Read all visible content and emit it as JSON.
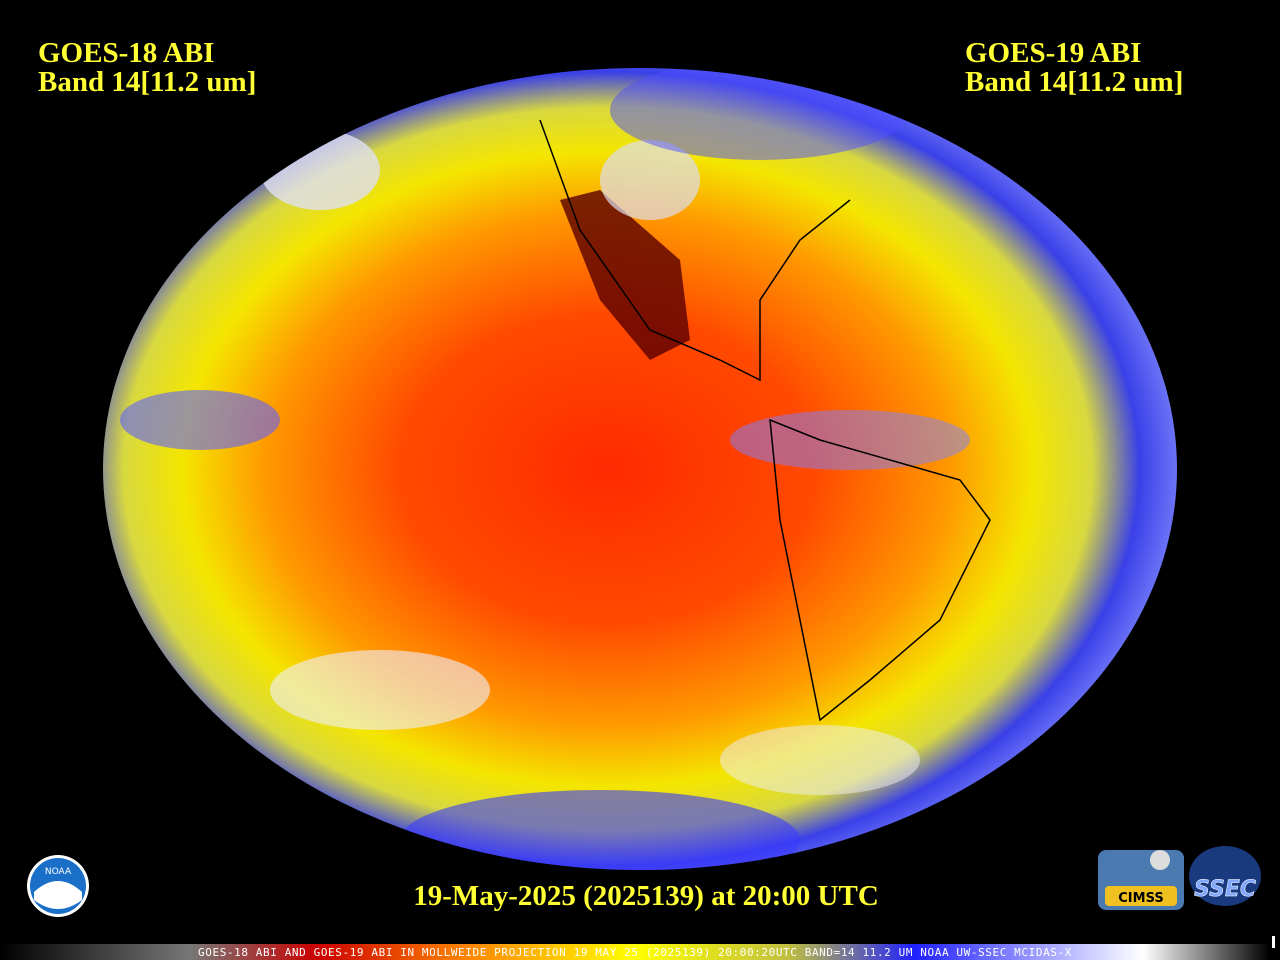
{
  "header": {
    "left": {
      "line1": "GOES-18 ABI",
      "line2": "Band 14[11.2 um]"
    },
    "right": {
      "line1": "GOES-19 ABI",
      "line2": "Band 14[11.2 um]"
    }
  },
  "timestamp": "19-May-2025 (2025139) at 20:00 UTC",
  "footer": "GOES-18 ABI AND GOES-19 ABI IN MOLLWEIDE PROJECTION 19 MAY 25 (2025139) 20:00:20UTC BAND=14 11.2 UM NOAA UW-SSEC MCIDAS-X",
  "logos": {
    "noaa": "NOAA",
    "cimss": "CIMSS",
    "ssec": "SSEC"
  }
}
